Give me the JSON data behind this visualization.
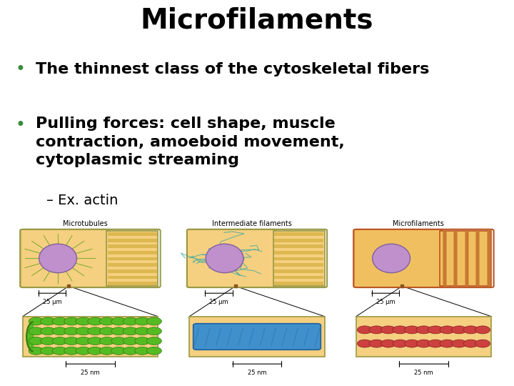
{
  "title": "Microfilaments",
  "title_fontsize": 28,
  "title_fontweight": "bold",
  "title_color": "#000000",
  "bullet1": "The thinnest class of the cytoskeletal fibers",
  "bullet1_fontsize": 16,
  "bullet2_line1": "Pulling forces: cell shape, muscle",
  "bullet2_line2": "contraction, amoeboid movement,",
  "bullet2_line3": "cytoplasmic streaming",
  "bullet2_fontsize": 16,
  "sub_bullet": "– Ex. actin",
  "sub_bullet_fontsize": 14,
  "bullet_color": "#3a8a3a",
  "text_color": "#000000",
  "background_color": "#ffffff",
  "panel_labels": [
    "Microtubules",
    "Intermediate filaments",
    "Microfilaments"
  ],
  "scale_um": "25 μm",
  "scale_nm": "25 nm",
  "cell_bg_color": "#f5d080",
  "cell_bg_color3": "#f0c060",
  "stripe_color": "#ddb850",
  "stripe_color3": "#c87830",
  "cell_border_color": "#999944",
  "cell_border_color3": "#bb5522",
  "nucleus_color": "#c090cc",
  "nucleus_border": "#8060a0",
  "micro_fiber_color": "#7aaa30",
  "inter_fiber_color": "#40a8a0",
  "bot_bg_color": "#f5d080",
  "bot_border_color": "#999944",
  "green_bead_fill": "#55bb22",
  "green_bead_edge": "#337711",
  "blue_tube_fill": "#4090cc",
  "blue_tube_edge": "#2060a0",
  "red_bead_fill": "#cc4040",
  "red_bead_edge": "#882020"
}
